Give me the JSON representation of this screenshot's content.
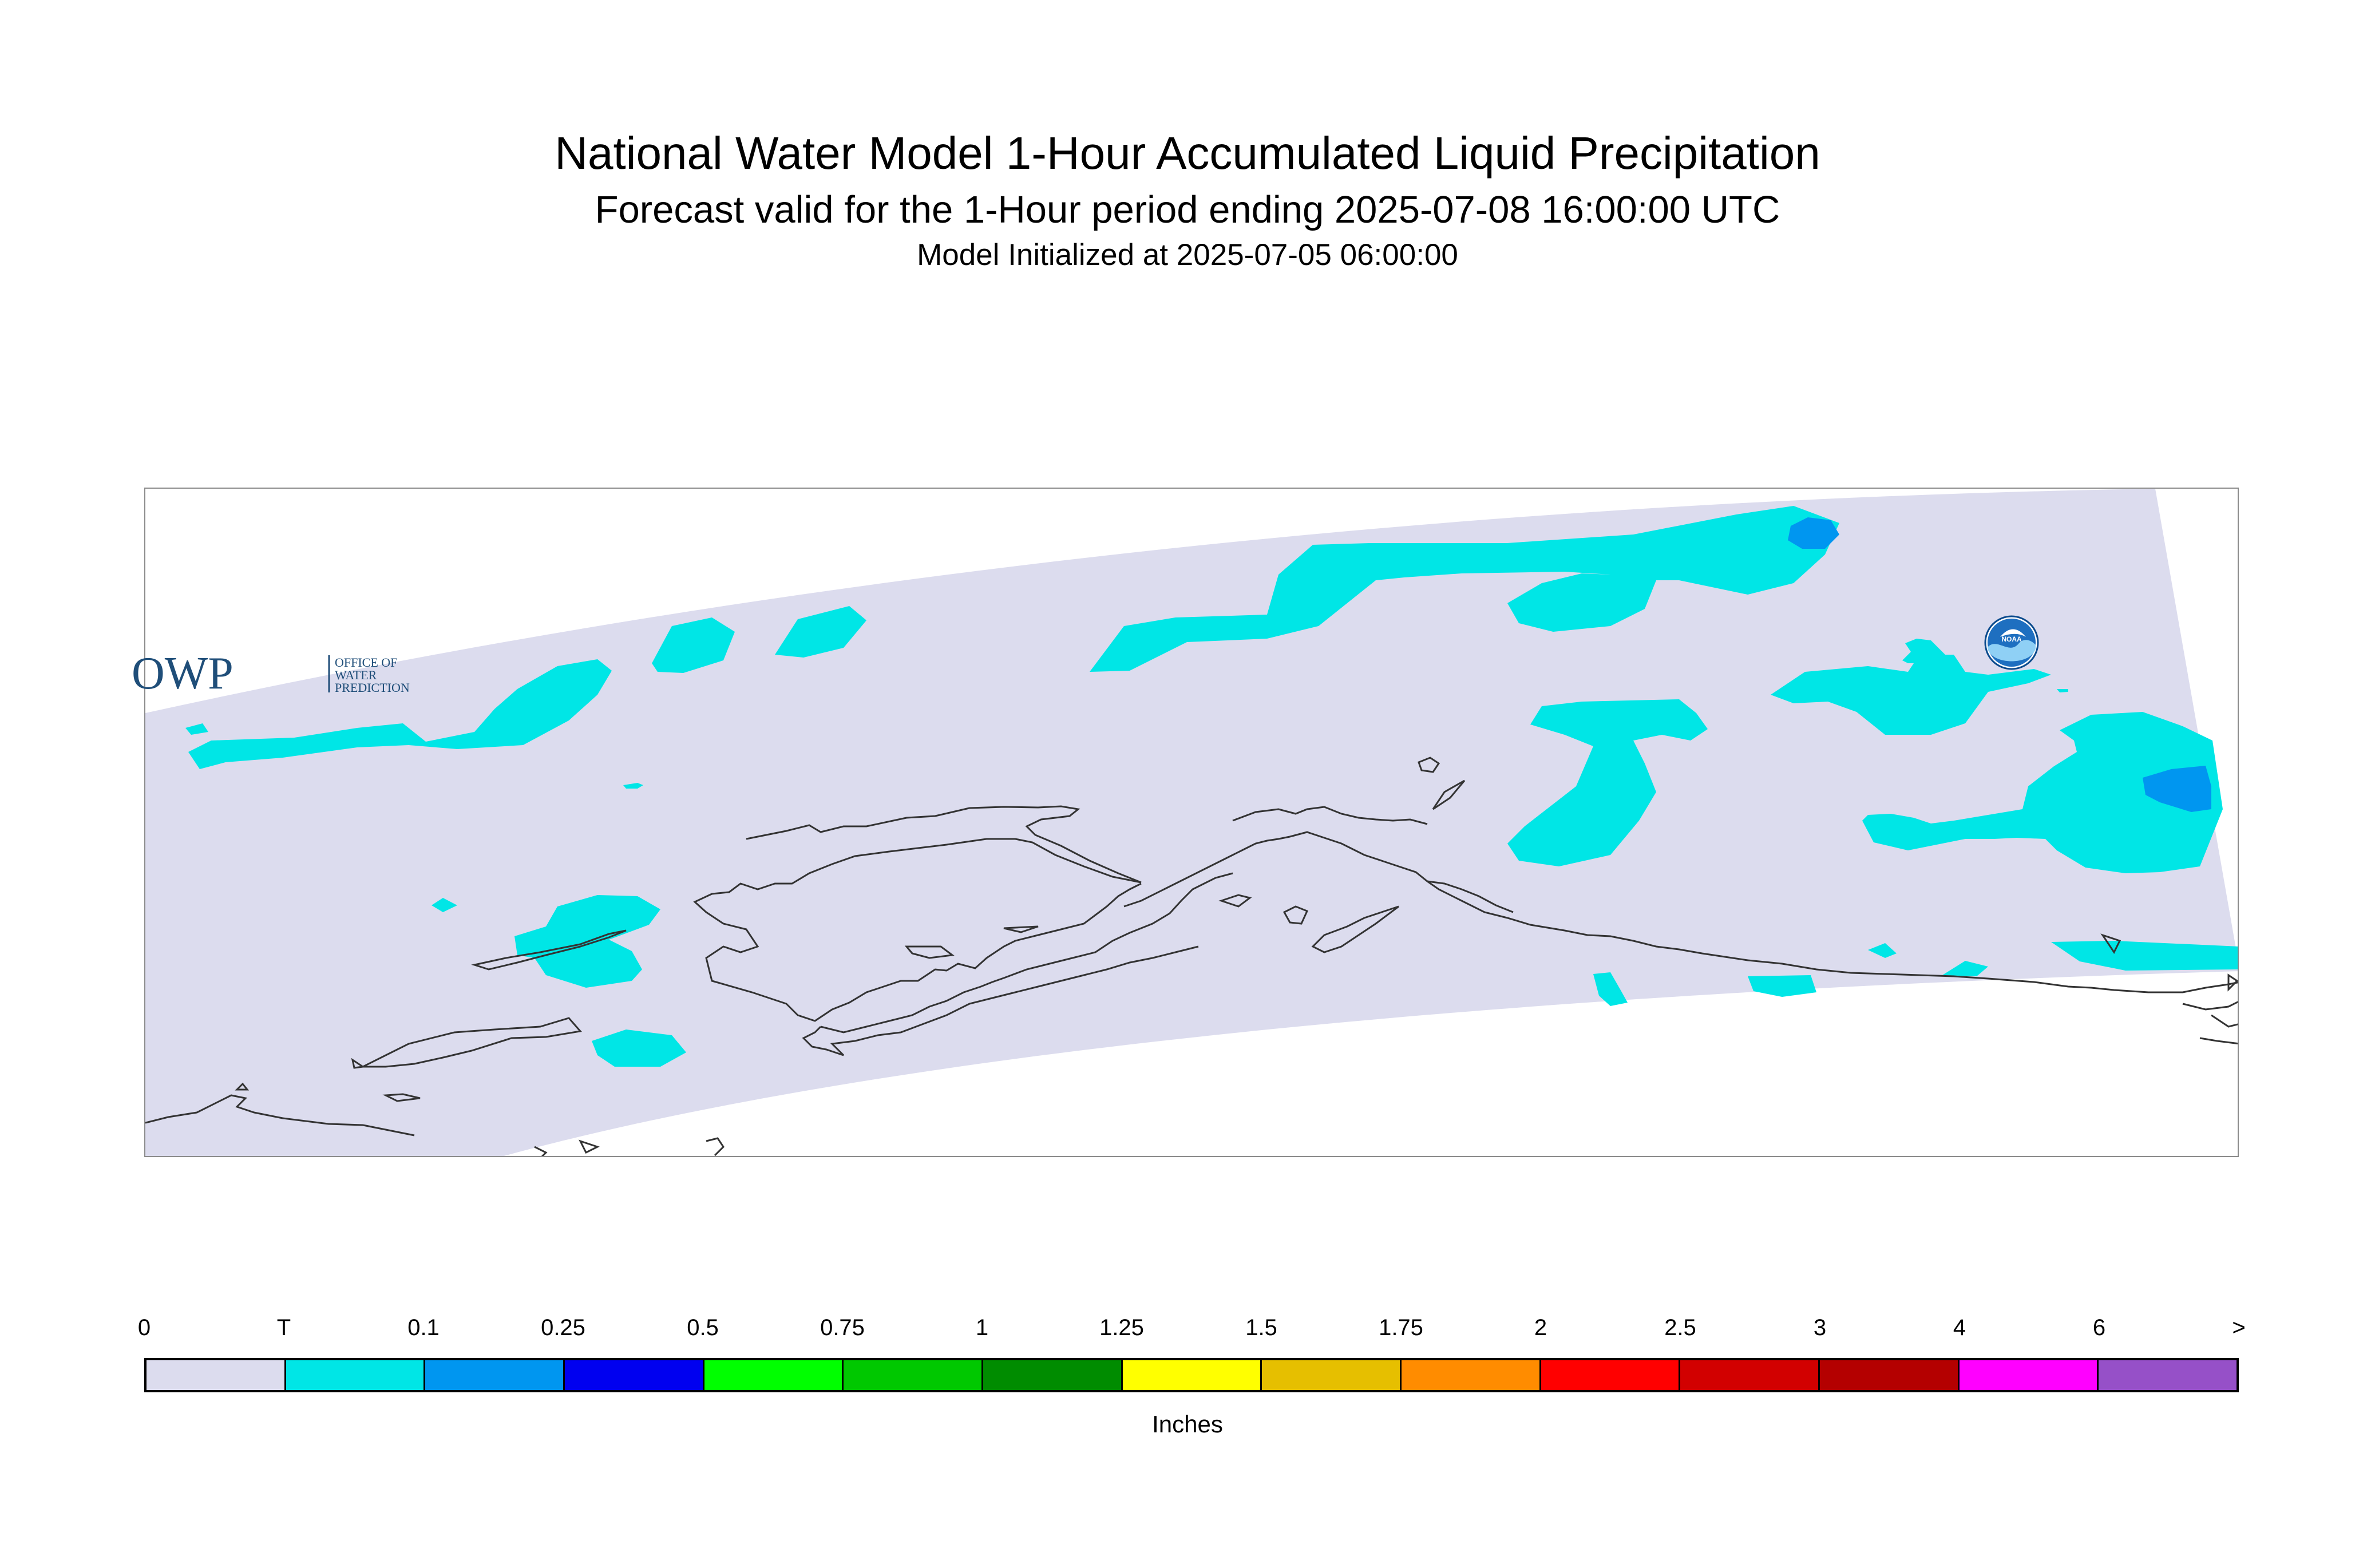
{
  "title": "National Water Model 1-Hour Accumulated Liquid Precipitation",
  "subtitle": "Forecast valid for the 1-Hour period ending 2025-07-08 16:00:00 UTC",
  "init_line": "Model Initialized at 2025-07-05 06:00:00",
  "owp_logo": {
    "mark": "OWP",
    "text_lines": [
      "OFFICE OF",
      "WATER",
      "PREDICTION"
    ]
  },
  "noaa_logo": {
    "text": "NOAA"
  },
  "colors": {
    "domain_fill": "#dcdcee",
    "trace": "#00e6e6",
    "light_blue": "#0096f0",
    "coast": "#333333"
  },
  "legend": {
    "units": "Inches",
    "tick_labels": [
      "0",
      "T",
      "0.1",
      "0.25",
      "0.5",
      "0.75",
      "1",
      "1.25",
      "1.5",
      "1.75",
      "2",
      "2.5",
      "3",
      "4",
      "6",
      ">"
    ],
    "bins": [
      {
        "color": "#dcdcee"
      },
      {
        "color": "#00e6e6"
      },
      {
        "color": "#0096f0"
      },
      {
        "color": "#0000f0"
      },
      {
        "color": "#00ff00"
      },
      {
        "color": "#00c800"
      },
      {
        "color": "#008c00"
      },
      {
        "color": "#ffff00"
      },
      {
        "color": "#e6bf00"
      },
      {
        "color": "#ff8c00"
      },
      {
        "color": "#ff0000"
      },
      {
        "color": "#d20000"
      },
      {
        "color": "#b40000"
      },
      {
        "color": "#ff00ff"
      },
      {
        "color": "#9650c8"
      }
    ]
  }
}
